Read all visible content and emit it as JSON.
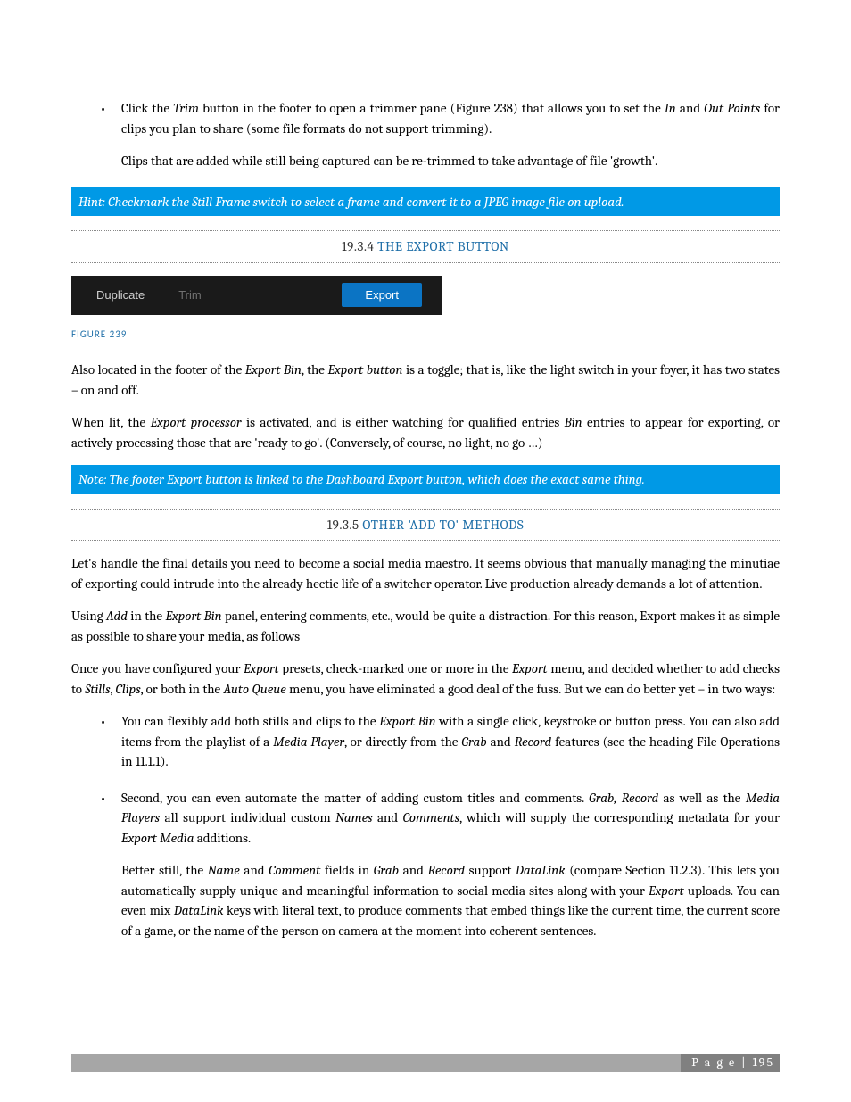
{
  "colors": {
    "hint_bg": "#0099e6",
    "hint_text": "#ffffff",
    "heading_link": "#1f6fa8",
    "toolbar_bg": "#1a1a1a",
    "toolbar_text": "#d0d0d0",
    "toolbar_dim": "#707070",
    "export_btn_bg": "#0b74c4",
    "footer_bar": "#a6a6a6",
    "footer_box": "#808080"
  },
  "bullet1": {
    "p1_parts": [
      "Click the ",
      "Trim",
      " button in the footer to open a trimmer pane (Figure 238) that allows you to set the ",
      "In",
      " and ",
      "Out Points",
      " for clips you plan to share (some file formats do not support trimming)."
    ],
    "p2": "Clips that are added while still being captured can be re-trimmed to take advantage of file 'growth'."
  },
  "hint1": "Hint: Checkmark the Still Frame switch to select a frame and convert it to a JPEG image file on upload.",
  "heading1": {
    "num": "19.3.4",
    "title": "THE EXPORT BUTTON"
  },
  "toolbar": {
    "duplicate": "Duplicate",
    "trim": "Trim",
    "export": "Export"
  },
  "figure_caption": "FIGURE 239",
  "para1_parts": [
    "Also located in the footer of the ",
    "Export Bin",
    ", the ",
    "Export button",
    " is a toggle; that is, like the light switch in your foyer, it has two states – on and off."
  ],
  "para2_parts": [
    "When lit, the ",
    "Export processor",
    " is activated, and is either watching for qualified entries ",
    "Bin",
    " entries to appear for exporting, or actively processing those that are 'ready to go'.   (Conversely, of course, no light, no go …)"
  ],
  "note1": "Note: The footer Export button is linked to the Dashboard Export button, which does the exact same thing.",
  "heading2": {
    "num": "19.3.5",
    "title": "OTHER 'ADD TO' METHODS"
  },
  "para3": "Let's handle the final details you need to become a social media maestro.  It seems obvious that manually managing the minutiae of exporting could intrude into the already hectic life of a switcher operator.  Live production already demands a lot of attention.",
  "para4_parts": [
    "Using ",
    "Add",
    " in the ",
    "Export Bin",
    " panel, entering comments, etc., would be quite a distraction.  For this reason, Export makes it as simple as possible to share your media, as follows"
  ],
  "para5_parts": [
    "Once you have configured your ",
    "Export",
    " presets, check-marked one or more in the ",
    "Export",
    " menu, and decided whether to add checks to ",
    "Stills",
    ", ",
    "Clips",
    ", or both in the ",
    "Auto Queue",
    " menu, you have eliminated a good deal of the fuss.  But we can do better yet – in two ways:"
  ],
  "bullet2_parts": [
    "You can flexibly add both stills and clips to the ",
    "Export Bin",
    " with a single click, keystroke or button press.  You can also add items from the playlist of a ",
    "Media Player",
    ", or directly from the ",
    "Grab",
    " and ",
    "Record",
    " features (see the heading File Operations in 11.1.1)."
  ],
  "bullet3": {
    "p1_parts": [
      "Second, you can even automate the matter of adding custom titles and comments.  ",
      "Grab, Record",
      " as well as the ",
      "Media Players",
      " all support individual custom ",
      "Names",
      " and ",
      "Comments",
      ", which will supply the corresponding metadata for your ",
      "Export Media",
      " additions."
    ],
    "p2_parts": [
      "Better still, the ",
      "Name",
      " and ",
      "Comment",
      " fields in ",
      "Grab",
      " and ",
      "Record",
      " support ",
      "DataLink",
      " (compare Section 11.2.3). This lets you automatically supply unique and meaningful information to social media sites along with your ",
      "Export",
      " uploads.  You can even mix ",
      "DataLink",
      " keys with literal text, to produce comments that embed things like the current time, the current score of a game, or the name of the person on camera at the moment into coherent sentences."
    ]
  },
  "footer": {
    "label": "P a g e",
    "divider": "|",
    "num": "195"
  }
}
